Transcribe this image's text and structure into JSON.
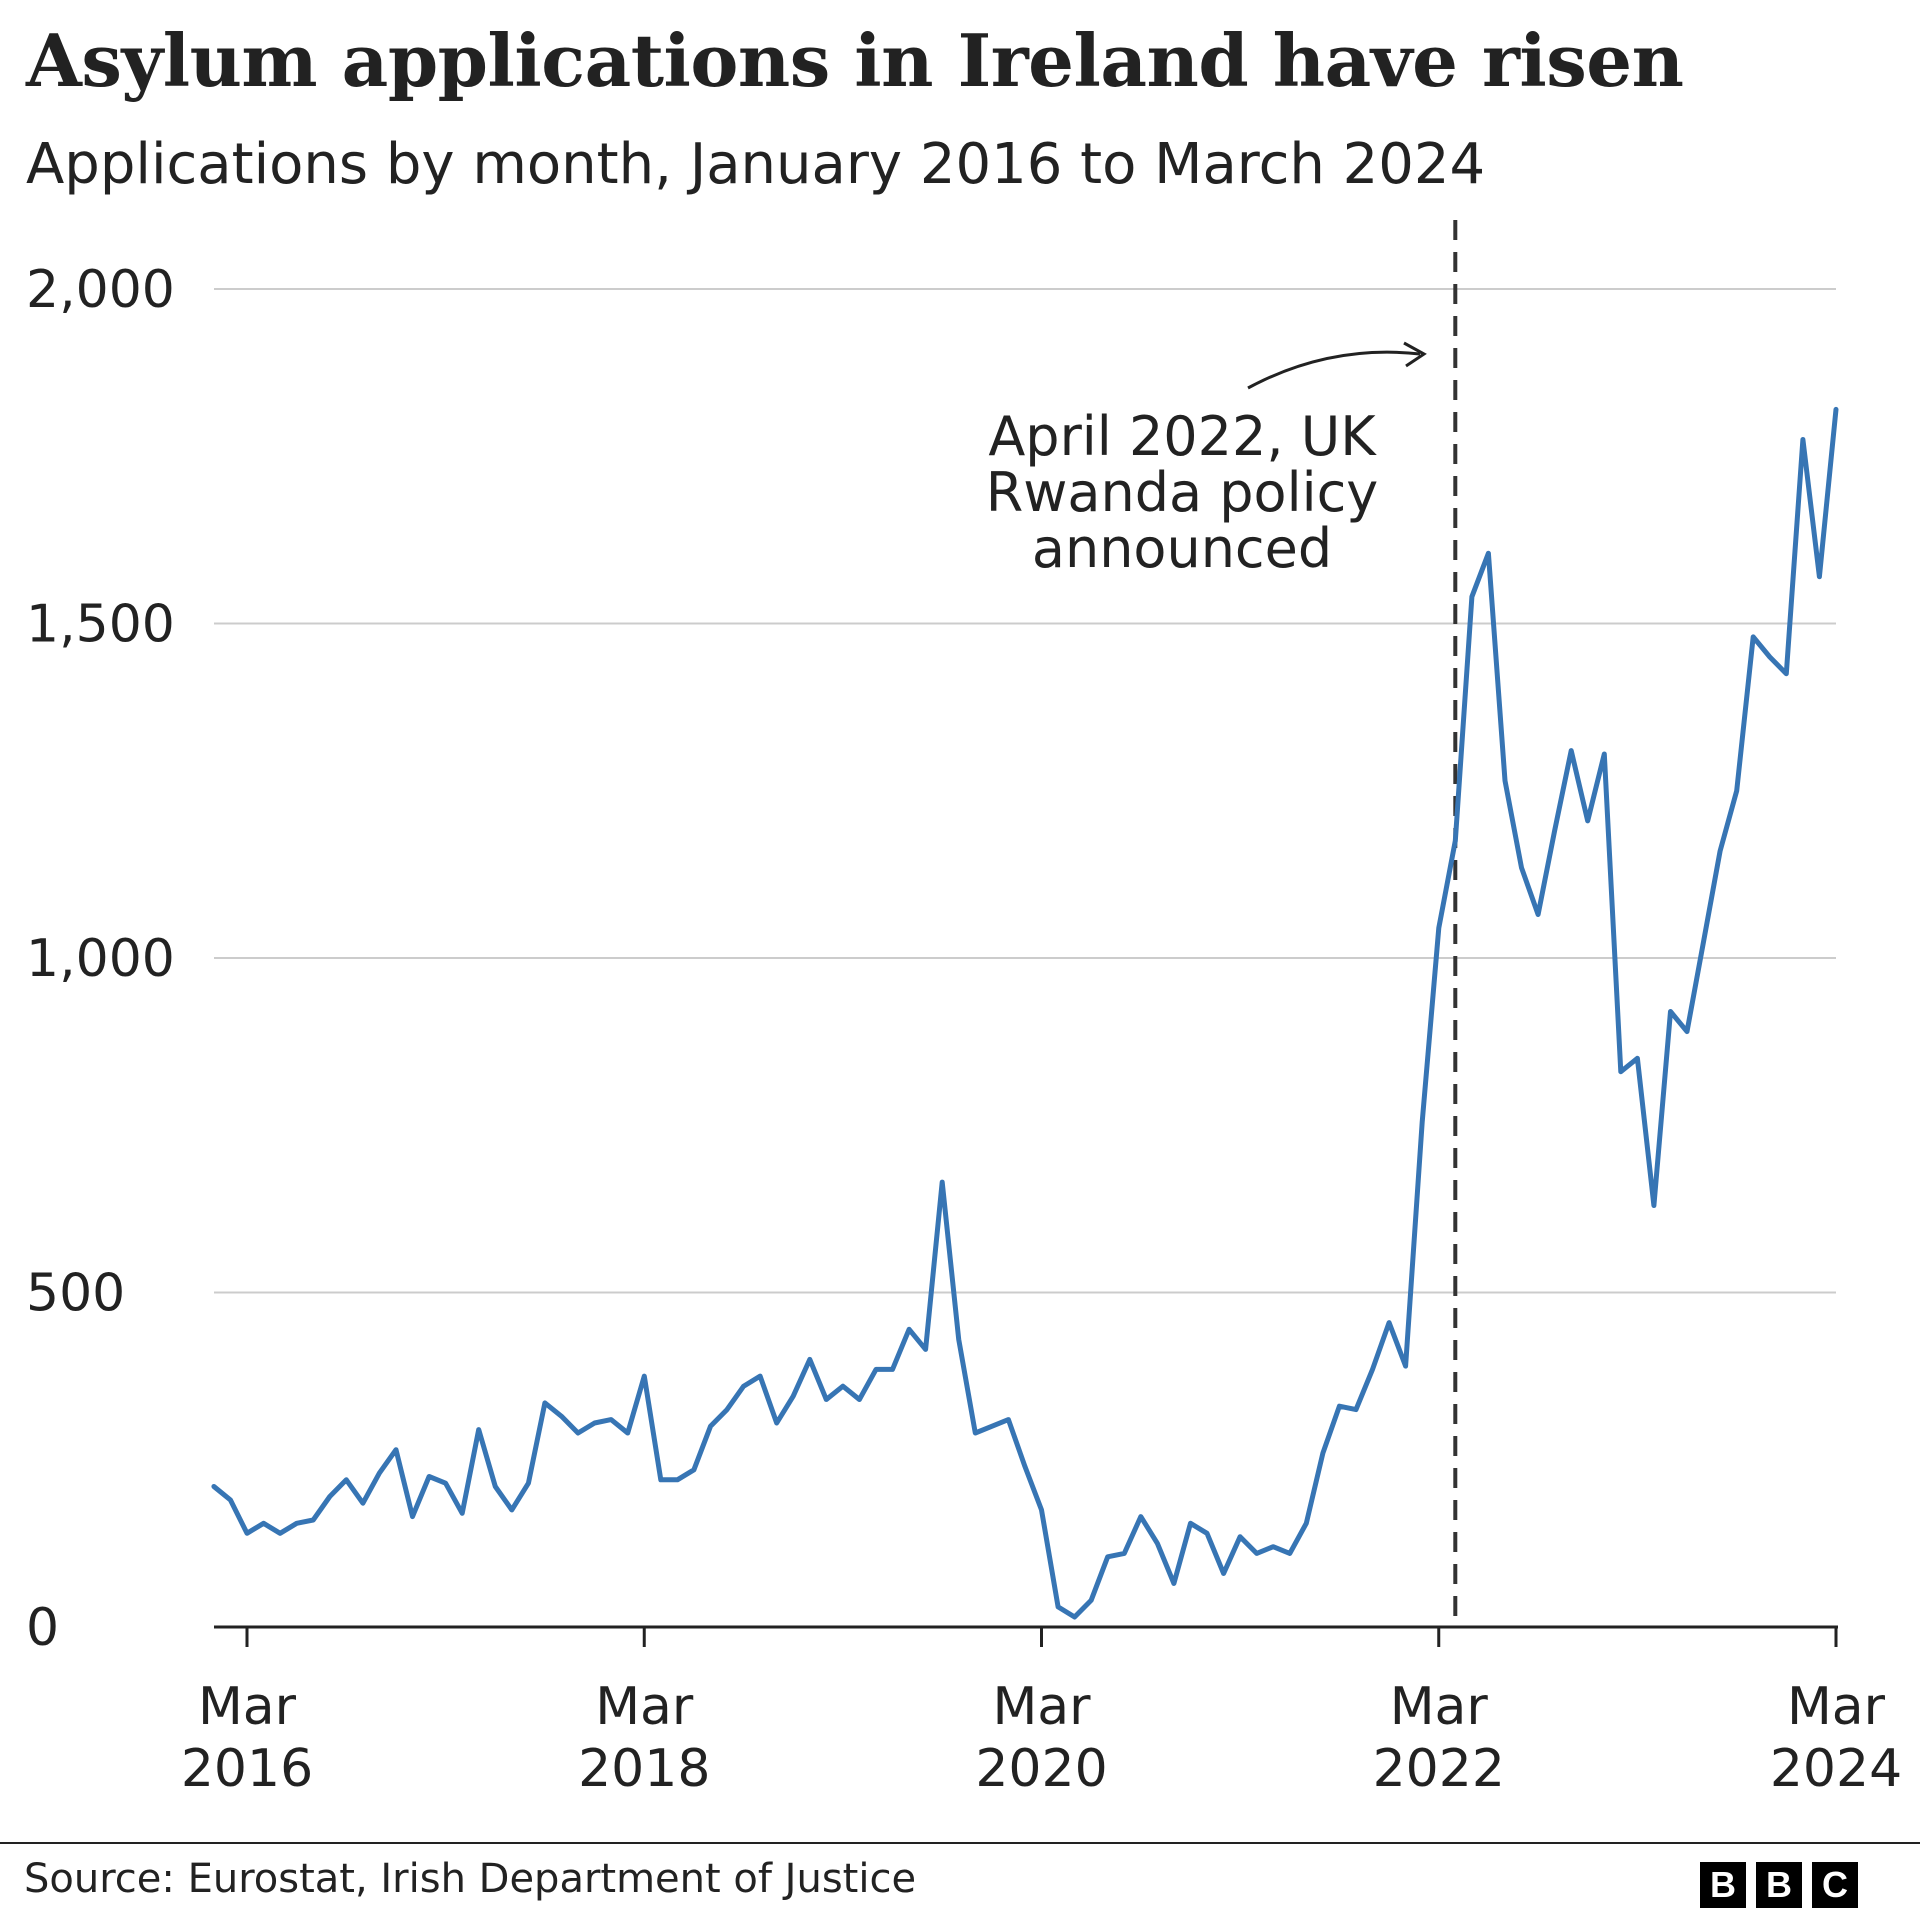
{
  "title": "Asylum applications in Ireland have risen",
  "subtitle": "Applications by month, January 2016 to March 2024",
  "source": "Source: Eurostat, Irish Department of Justice",
  "logo": [
    "B",
    "B",
    "C"
  ],
  "colors": {
    "line": "#3775b4",
    "grid": "#cccccc",
    "axis": "#222222",
    "text": "#222222"
  },
  "chart_data": {
    "type": "line",
    "title": "Asylum applications in Ireland have risen",
    "subtitle": "Applications by month, January 2016 to March 2024",
    "ylim": [
      0,
      2000
    ],
    "yticks": [
      0,
      500,
      1000,
      1500,
      2000
    ],
    "ytick_labels": [
      "0",
      "500",
      "1,000",
      "1,500",
      "2,000"
    ],
    "xticks": [
      {
        "date": "2016-03",
        "label": [
          "Mar",
          "2016"
        ]
      },
      {
        "date": "2018-03",
        "label": [
          "Mar",
          "2018"
        ]
      },
      {
        "date": "2020-03",
        "label": [
          "Mar",
          "2020"
        ]
      },
      {
        "date": "2022-03",
        "label": [
          "Mar",
          "2022"
        ]
      },
      {
        "date": "2024-03",
        "label": [
          "Mar",
          "2024"
        ]
      }
    ],
    "grid": true,
    "start": "2016-01",
    "end": "2024-03",
    "series": [
      {
        "values": [
          210,
          190,
          140,
          155,
          140,
          155,
          160,
          195,
          220,
          185,
          230,
          265,
          165,
          225,
          215,
          170,
          295,
          210,
          175,
          215,
          335,
          315,
          290,
          305,
          310,
          290,
          375,
          220,
          220,
          235,
          300,
          325,
          360,
          375,
          305,
          345,
          400,
          340,
          360,
          340,
          385,
          385,
          445,
          415,
          665,
          430,
          290,
          300,
          310,
          240,
          175,
          30,
          15,
          40,
          105,
          110,
          165,
          125,
          65,
          155,
          140,
          80,
          135,
          110,
          120,
          110,
          155,
          260,
          330,
          325,
          385,
          455,
          390,
          755,
          1045,
          1175,
          1540,
          1605,
          1265,
          1135,
          1065,
          1190,
          1310,
          1205,
          1305,
          830,
          850,
          630,
          920,
          890,
          1025,
          1160,
          1250,
          1480,
          1450,
          1425,
          1775,
          1570,
          1820
        ]
      }
    ],
    "annotation": {
      "date": "2022-04",
      "lines": [
        "April 2022, UK",
        "Rwanda policy",
        "announced"
      ]
    }
  }
}
